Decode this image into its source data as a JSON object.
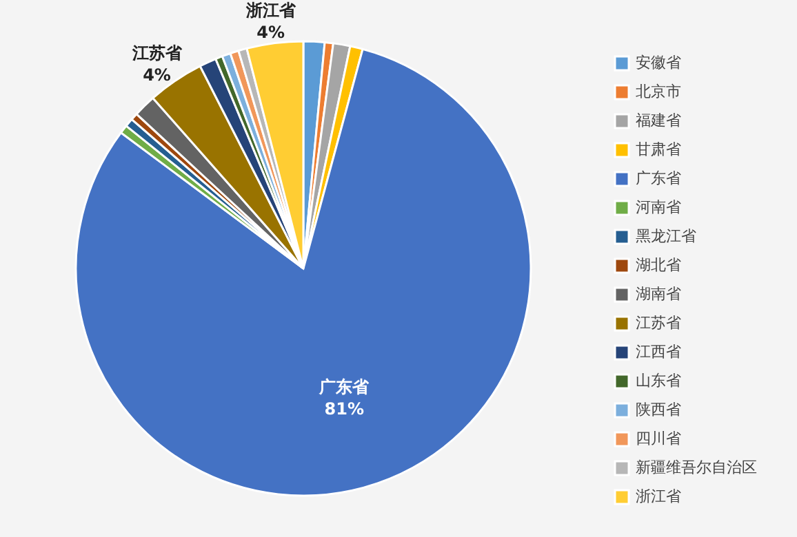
{
  "chart_data": {
    "type": "pie",
    "categories": [
      "安徽省",
      "北京市",
      "福建省",
      "甘肃省",
      "广东省",
      "河南省",
      "黑龙江省",
      "湖北省",
      "湖南省",
      "江苏省",
      "江西省",
      "山东省",
      "陕西省",
      "四川省",
      "新疆维吾尔自治区",
      "浙江省"
    ],
    "values": [
      1.5,
      0.6,
      1.2,
      0.9,
      81,
      0.6,
      0.6,
      0.5,
      1.6,
      4,
      1.2,
      0.5,
      0.6,
      0.6,
      0.6,
      4
    ],
    "value_labels": [
      null,
      null,
      null,
      null,
      "81%",
      null,
      null,
      null,
      null,
      "4%",
      null,
      null,
      null,
      null,
      null,
      "4%"
    ],
    "colors": [
      "#5b9bd5",
      "#ed7d31",
      "#a5a5a5",
      "#ffc000",
      "#4472c4",
      "#70ad47",
      "#255e91",
      "#9e480e",
      "#636363",
      "#997300",
      "#264478",
      "#43682b",
      "#7cafdd",
      "#f1975a",
      "#b7b7b7",
      "#ffcd33"
    ],
    "legend": "right"
  }
}
